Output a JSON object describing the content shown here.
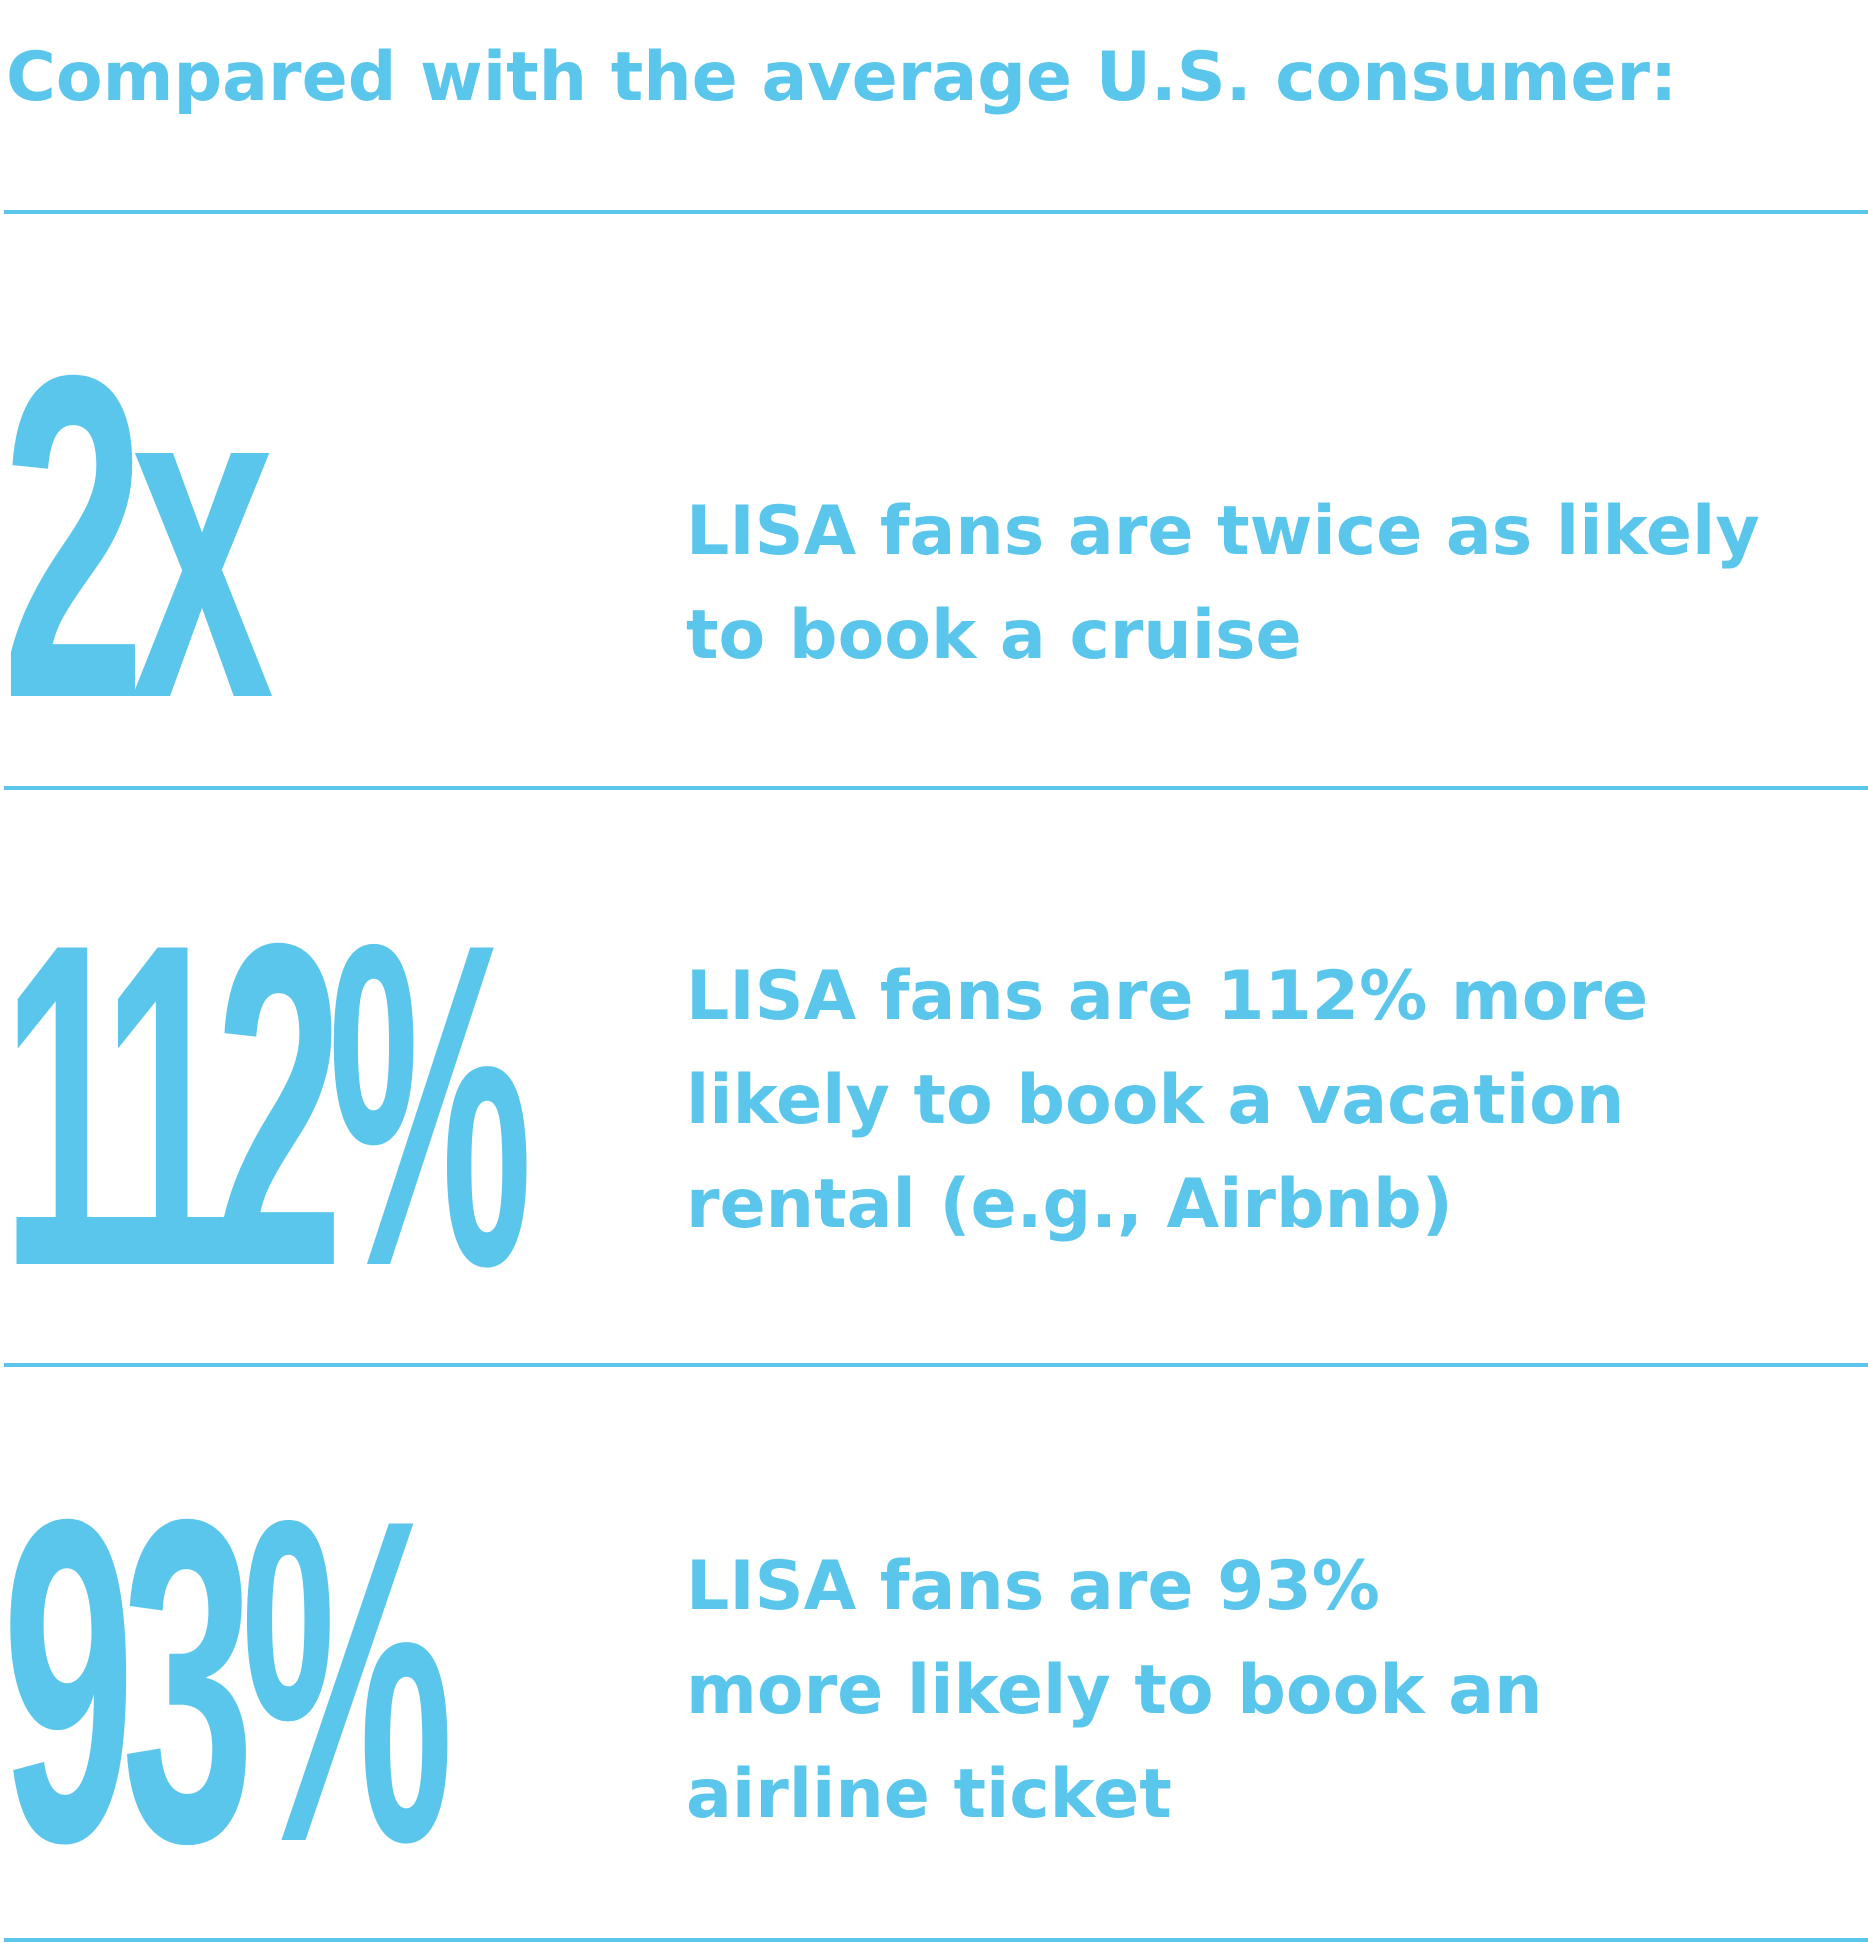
{
  "heading": "Compared with the average U.S. consumer:",
  "accent_color": "#5bc6ec",
  "stats": [
    {
      "figure": "2x",
      "description": "LISA fans are twice as likely\nto book a cruise"
    },
    {
      "figure": "112%",
      "description": "LISA fans are 112% more\nlikely to book a vacation\nrental (e.g., Airbnb)"
    },
    {
      "figure": "93%",
      "description": "LISA fans are 93%\nmore likely to book an\nairline ticket"
    }
  ]
}
